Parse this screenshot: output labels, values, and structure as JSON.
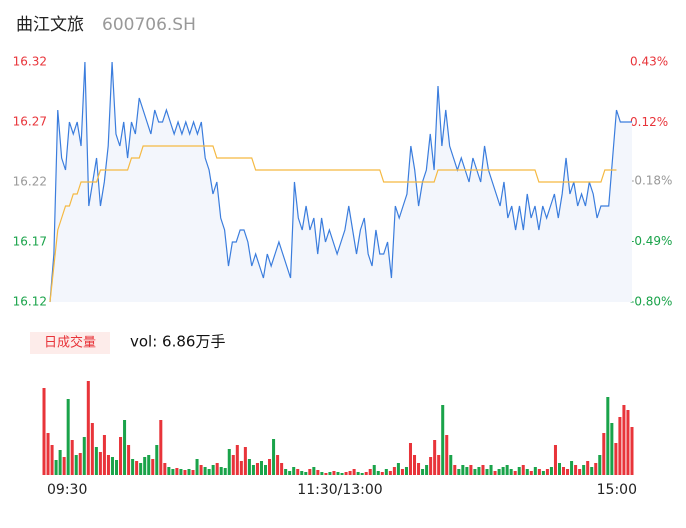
{
  "header": {
    "name": "曲江文旅",
    "code": "600706.SH"
  },
  "chart_data": {
    "type": "line",
    "ylim": [
      16.12,
      16.32
    ],
    "yticks": [
      16.12,
      16.17,
      16.22,
      16.27,
      16.32
    ],
    "y2lim": [
      -0.8,
      0.43
    ],
    "y2ticks": [
      {
        "value": -0.8,
        "label": "-0.80%"
      },
      {
        "value": -0.49,
        "label": "-0.49%"
      },
      {
        "value": -0.18,
        "label": "-0.18%"
      },
      {
        "value": 0.12,
        "label": "0.12%"
      },
      {
        "value": 0.43,
        "label": "0.43%"
      }
    ],
    "tick_colors": [
      "#1aa34a",
      "#1aa34a",
      "#999999",
      "#e8343a",
      "#e8343a"
    ],
    "x_labels": [
      "09:30",
      "11:30/13:00",
      "15:00"
    ],
    "series": [
      {
        "name": "price",
        "color": "#3b7ddd",
        "values": [
          16.12,
          16.16,
          16.28,
          16.24,
          16.23,
          16.27,
          16.26,
          16.27,
          16.25,
          16.32,
          16.2,
          16.22,
          16.24,
          16.2,
          16.22,
          16.25,
          16.32,
          16.26,
          16.25,
          16.27,
          16.24,
          16.27,
          16.26,
          16.29,
          16.28,
          16.27,
          16.26,
          16.28,
          16.27,
          16.27,
          16.28,
          16.27,
          16.26,
          16.27,
          16.26,
          16.27,
          16.26,
          16.27,
          16.26,
          16.27,
          16.24,
          16.23,
          16.21,
          16.22,
          16.19,
          16.18,
          16.15,
          16.17,
          16.17,
          16.18,
          16.18,
          16.17,
          16.15,
          16.16,
          16.15,
          16.14,
          16.16,
          16.15,
          16.16,
          16.17,
          16.16,
          16.15,
          16.14,
          16.22,
          16.19,
          16.18,
          16.2,
          16.18,
          16.19,
          16.16,
          16.19,
          16.17,
          16.18,
          16.17,
          16.16,
          16.17,
          16.18,
          16.2,
          16.18,
          16.16,
          16.18,
          16.19,
          16.16,
          16.15,
          16.18,
          16.16,
          16.16,
          16.17,
          16.14,
          16.2,
          16.19,
          16.2,
          16.21,
          16.25,
          16.23,
          16.2,
          16.22,
          16.23,
          16.26,
          16.23,
          16.3,
          16.25,
          16.28,
          16.25,
          16.24,
          16.23,
          16.24,
          16.23,
          16.22,
          16.24,
          16.23,
          16.22,
          16.25,
          16.23,
          16.22,
          16.21,
          16.2,
          16.22,
          16.19,
          16.2,
          16.18,
          16.2,
          16.18,
          16.21,
          16.19,
          16.2,
          16.18,
          16.2,
          16.19,
          16.2,
          16.21,
          16.19,
          16.21,
          16.24,
          16.21,
          16.22,
          16.2,
          16.21,
          16.2,
          16.22,
          16.21,
          16.19,
          16.2,
          16.2,
          16.2,
          16.24,
          16.28,
          16.27,
          16.27,
          16.27,
          16.27
        ]
      },
      {
        "name": "average",
        "color": "#f5b942",
        "values": [
          16.12,
          16.15,
          16.18,
          16.19,
          16.2,
          16.2,
          16.21,
          16.21,
          16.22,
          16.22,
          16.22,
          16.22,
          16.22,
          16.23,
          16.23,
          16.23,
          16.23,
          16.23,
          16.23,
          16.23,
          16.23,
          16.24,
          16.24,
          16.24,
          16.25,
          16.25,
          16.25,
          16.25,
          16.25,
          16.25,
          16.25,
          16.25,
          16.25,
          16.25,
          16.25,
          16.25,
          16.25,
          16.25,
          16.25,
          16.25,
          16.25,
          16.25,
          16.25,
          16.24,
          16.24,
          16.24,
          16.24,
          16.24,
          16.24,
          16.24,
          16.24,
          16.24,
          16.24,
          16.23,
          16.23,
          16.23,
          16.23,
          16.23,
          16.23,
          16.23,
          16.23,
          16.23,
          16.23,
          16.23,
          16.23,
          16.23,
          16.23,
          16.23,
          16.23,
          16.23,
          16.23,
          16.23,
          16.23,
          16.23,
          16.23,
          16.23,
          16.23,
          16.23,
          16.23,
          16.23,
          16.23,
          16.23,
          16.23,
          16.23,
          16.23,
          16.23,
          16.22,
          16.22,
          16.22,
          16.22,
          16.22,
          16.22,
          16.22,
          16.22,
          16.22,
          16.22,
          16.22,
          16.22,
          16.22,
          16.22,
          16.23,
          16.23,
          16.23,
          16.23,
          16.23,
          16.23,
          16.23,
          16.23,
          16.23,
          16.23,
          16.23,
          16.23,
          16.23,
          16.23,
          16.23,
          16.23,
          16.23,
          16.23,
          16.23,
          16.23,
          16.23,
          16.23,
          16.23,
          16.23,
          16.23,
          16.23,
          16.22,
          16.22,
          16.22,
          16.22,
          16.22,
          16.22,
          16.22,
          16.22,
          16.22,
          16.22,
          16.22,
          16.22,
          16.22,
          16.22,
          16.22,
          16.22,
          16.22,
          16.23,
          16.23,
          16.23,
          16.23
        ]
      }
    ],
    "volume": {
      "legend": "日成交量",
      "label": "vol: 6.86万手",
      "up_color": "#e8343a",
      "down_color": "#1aa34a",
      "ylim": [
        0,
        1000
      ],
      "values": [
        870,
        420,
        300,
        150,
        250,
        180,
        760,
        350,
        200,
        220,
        380,
        940,
        520,
        280,
        230,
        400,
        200,
        180,
        150,
        380,
        550,
        300,
        160,
        140,
        120,
        180,
        200,
        160,
        300,
        550,
        120,
        80,
        60,
        70,
        60,
        50,
        60,
        50,
        160,
        100,
        80,
        60,
        100,
        120,
        80,
        70,
        260,
        200,
        300,
        140,
        280,
        160,
        100,
        120,
        140,
        100,
        160,
        360,
        200,
        120,
        60,
        40,
        80,
        60,
        40,
        30,
        60,
        80,
        50,
        30,
        20,
        30,
        40,
        30,
        20,
        30,
        40,
        60,
        30,
        20,
        30,
        60,
        100,
        40,
        30,
        60,
        40,
        80,
        120,
        60,
        80,
        320,
        200,
        120,
        60,
        100,
        180,
        350,
        200,
        700,
        400,
        200,
        100,
        60,
        100,
        80,
        100,
        60,
        80,
        100,
        60,
        100,
        40,
        60,
        80,
        100,
        60,
        40,
        80,
        100,
        60,
        40,
        80,
        60,
        40,
        60,
        80,
        300,
        120,
        80,
        60,
        140,
        100,
        60,
        100,
        140,
        80,
        120,
        200,
        420,
        780,
        520,
        320,
        580,
        700,
        650,
        480
      ]
    }
  }
}
